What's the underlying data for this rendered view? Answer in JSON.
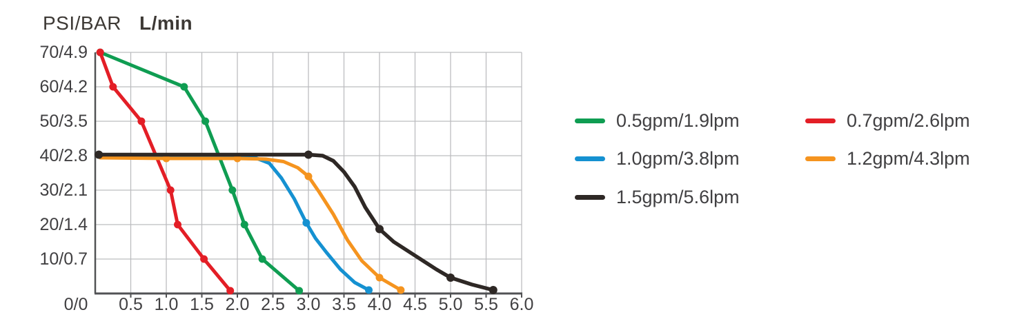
{
  "header": {
    "y_unit": "PSI/BAR",
    "x_unit": "L/min"
  },
  "axes": {
    "y_tick_labels": [
      "70/4.9",
      "60/4.2",
      "50/3.5",
      "40/2.8",
      "30/2.1",
      "20/1.4",
      "10/0.7"
    ],
    "x_tick_labels": [
      "0/0",
      "0.5",
      "1.0",
      "1.5",
      "2.0",
      "2.5",
      "3.0",
      "3.5",
      "4.0",
      "4.5",
      "5.0",
      "5.5",
      "6.0"
    ]
  },
  "colors": {
    "green": "#0F9D52",
    "red": "#E31E26",
    "blue": "#1591D1",
    "orange": "#F5941F",
    "black": "#2E2825",
    "grid": "#BCBDBF",
    "axis": "#515254",
    "text": "#414042"
  },
  "legend": {
    "items": [
      {
        "label": "0.5gpm/1.9lpm",
        "color": "#0F9D52",
        "row": 0,
        "col": 0
      },
      {
        "label": "0.7gpm/2.6lpm",
        "color": "#E31E26",
        "row": 0,
        "col": 1
      },
      {
        "label": "1.0gpm/3.8lpm",
        "color": "#1591D1",
        "row": 1,
        "col": 0
      },
      {
        "label": "1.2gpm/4.3lpm",
        "color": "#F5941F",
        "row": 1,
        "col": 1
      },
      {
        "label": "1.5gpm/5.6lpm",
        "color": "#2E2825",
        "row": 2,
        "col": 0
      }
    ]
  },
  "chart_data": {
    "type": "line",
    "title": "",
    "xlabel": "L/min",
    "ylabel": "PSI/BAR",
    "xlim": [
      0,
      6.0
    ],
    "ylim": [
      0,
      70
    ],
    "x_tick_step": 0.5,
    "y_tick_step": 10,
    "grid": true,
    "legend_position": "right",
    "series": [
      {
        "name": "0.5gpm/1.9lpm",
        "color": "#0F9D52",
        "width": 5,
        "points": [
          [
            0.07,
            70
          ],
          [
            1.25,
            60
          ],
          [
            1.55,
            50
          ],
          [
            1.93,
            30
          ],
          [
            2.1,
            20
          ],
          [
            2.35,
            10
          ],
          [
            2.87,
            0.8
          ]
        ],
        "dots": [
          [
            0.07,
            70
          ],
          [
            1.25,
            60
          ],
          [
            1.55,
            50
          ],
          [
            1.93,
            30
          ],
          [
            2.1,
            20
          ],
          [
            2.35,
            10
          ],
          [
            2.87,
            0.8
          ]
        ]
      },
      {
        "name": "0.7gpm/2.6lpm",
        "color": "#E31E26",
        "width": 5,
        "points": [
          [
            0.07,
            70
          ],
          [
            0.25,
            60
          ],
          [
            0.65,
            50
          ],
          [
            1.06,
            30
          ],
          [
            1.16,
            20
          ],
          [
            1.53,
            10
          ],
          [
            1.9,
            0.8
          ]
        ],
        "dots": [
          [
            0.07,
            70
          ],
          [
            0.25,
            60
          ],
          [
            0.65,
            50
          ],
          [
            1.06,
            30
          ],
          [
            1.16,
            20
          ],
          [
            1.53,
            10
          ],
          [
            1.9,
            0.8
          ]
        ]
      },
      {
        "name": "1.0gpm/3.8lpm",
        "color": "#1591D1",
        "width": 5,
        "points": [
          [
            0.07,
            39.7
          ],
          [
            1.0,
            39.7
          ],
          [
            2.0,
            39.7
          ],
          [
            2.25,
            39.4
          ],
          [
            2.45,
            37.8
          ],
          [
            2.62,
            33.5
          ],
          [
            2.8,
            27.5
          ],
          [
            2.97,
            20.5
          ],
          [
            3.1,
            16
          ],
          [
            3.25,
            12
          ],
          [
            3.45,
            7
          ],
          [
            3.65,
            3.2
          ],
          [
            3.85,
            1
          ]
        ],
        "dots": [
          [
            2.97,
            20.5
          ],
          [
            3.85,
            1
          ]
        ]
      },
      {
        "name": "1.2gpm/4.3lpm",
        "color": "#F5941F",
        "width": 5,
        "points": [
          [
            0.07,
            39.4
          ],
          [
            1.0,
            39.2
          ],
          [
            2.0,
            39.2
          ],
          [
            2.4,
            39
          ],
          [
            2.65,
            38.3
          ],
          [
            2.85,
            36.5
          ],
          [
            3.0,
            34
          ],
          [
            3.15,
            29.5
          ],
          [
            3.35,
            23
          ],
          [
            3.55,
            15.5
          ],
          [
            3.75,
            9.5
          ],
          [
            4.0,
            4.6
          ],
          [
            4.3,
            1
          ]
        ],
        "dots": [
          [
            1.0,
            39.2
          ],
          [
            2.0,
            39.2
          ],
          [
            3.0,
            34
          ],
          [
            4.0,
            4.6
          ],
          [
            4.3,
            1
          ]
        ]
      },
      {
        "name": "1.5gpm/5.6lpm",
        "color": "#2E2825",
        "width": 5.5,
        "points": [
          [
            0.05,
            40.3
          ],
          [
            1.0,
            40.3
          ],
          [
            2.0,
            40.3
          ],
          [
            3.0,
            40.3
          ],
          [
            3.2,
            40
          ],
          [
            3.35,
            38.5
          ],
          [
            3.5,
            35.3
          ],
          [
            3.65,
            31
          ],
          [
            3.8,
            25
          ],
          [
            4.0,
            18.7
          ],
          [
            4.2,
            15
          ],
          [
            4.5,
            11
          ],
          [
            4.8,
            7
          ],
          [
            5.0,
            4.6
          ],
          [
            5.3,
            2.6
          ],
          [
            5.6,
            1
          ]
        ],
        "dots": [
          [
            0.05,
            40.3
          ],
          [
            3.0,
            40.3
          ],
          [
            4.0,
            18.7
          ],
          [
            5.0,
            4.6
          ],
          [
            5.6,
            1
          ]
        ]
      }
    ]
  }
}
